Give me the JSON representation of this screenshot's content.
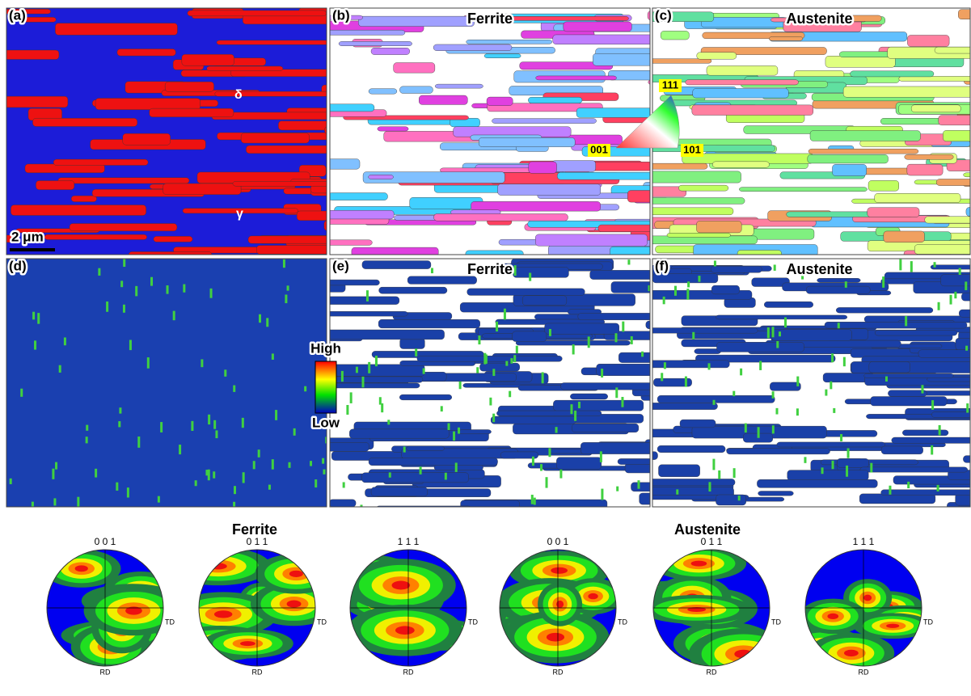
{
  "maps": [
    {
      "label": "(a)",
      "annotations": [
        "δ",
        "γ"
      ],
      "scale_bar": "2 μm"
    },
    {
      "label": "(b)",
      "title": "Ferrite",
      "ipf": [
        "111",
        "001",
        "101"
      ]
    },
    {
      "label": "(c)",
      "title": "Austenite"
    },
    {
      "label": "(d)",
      "legend": [
        "High",
        "Low"
      ]
    },
    {
      "label": "(e)",
      "title": "Ferrite"
    },
    {
      "label": "(f)",
      "title": "Austenite"
    }
  ],
  "pole_figures": [
    {
      "phase": "Ferrite",
      "figures": [
        {
          "plane": "0 0 1",
          "td": "TD",
          "rd": "RD"
        },
        {
          "plane": "0 1 1",
          "td": "TD",
          "rd": "RD"
        },
        {
          "plane": "1 1 1",
          "td": "TD",
          "rd": "RD"
        }
      ]
    },
    {
      "phase": "Austenite",
      "figures": [
        {
          "plane": "0 0 1",
          "td": "TD",
          "rd": "RD"
        },
        {
          "plane": "0 1 1",
          "td": "TD",
          "rd": "RD"
        },
        {
          "plane": "1 1 1",
          "td": "TD",
          "rd": "RD"
        }
      ]
    }
  ]
}
